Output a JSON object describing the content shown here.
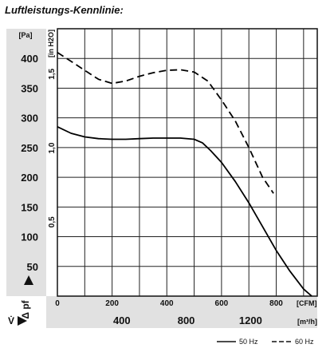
{
  "chart_data": {
    "type": "line",
    "title": "Luftleistungs-Kennlinie:",
    "y_axis": {
      "unit": "[Pa]",
      "ticks": [
        50,
        100,
        150,
        200,
        250,
        300,
        350,
        400
      ],
      "ticks_text": [
        "50",
        "100",
        "150",
        "200",
        "250",
        "300",
        "350",
        "400"
      ],
      "range": [
        0,
        450
      ],
      "symbol": "Δ pf"
    },
    "y_axis_secondary": {
      "unit": "[in H2O]",
      "ticks": [
        0.5,
        1.0,
        1.5
      ],
      "ticks_text": [
        "0,5",
        "1,0",
        "1,5"
      ]
    },
    "x_axis": {
      "unit": "[CFM]",
      "ticks": [
        0,
        200,
        400,
        600,
        800
      ],
      "ticks_text": [
        "0",
        "200",
        "400",
        "600",
        "800"
      ],
      "range": [
        0,
        950
      ]
    },
    "x_axis_secondary": {
      "unit": "[m³/h]",
      "ticks": [
        400,
        800,
        1200
      ],
      "ticks_text": [
        "400",
        "800",
        "1200"
      ],
      "symbol": "V̇"
    },
    "grid": true,
    "legend_position": "bottom-right",
    "series": [
      {
        "name": "50 Hz",
        "style": "solid",
        "color": "#000000",
        "x": [
          0,
          50,
          100,
          150,
          200,
          250,
          300,
          350,
          400,
          450,
          500,
          530,
          560,
          600,
          650,
          700,
          750,
          800,
          850,
          900,
          930
        ],
        "y": [
          285,
          274,
          268,
          265,
          264,
          264,
          265,
          266,
          266,
          266,
          264,
          258,
          245,
          225,
          193,
          157,
          117,
          77,
          42,
          12,
          0
        ]
      },
      {
        "name": "60 Hz",
        "style": "dashed",
        "color": "#000000",
        "x": [
          0,
          50,
          100,
          150,
          200,
          250,
          300,
          350,
          400,
          450,
          500,
          550,
          600,
          650,
          700,
          750,
          790
        ],
        "y": [
          410,
          395,
          380,
          365,
          358,
          362,
          370,
          376,
          380,
          381,
          377,
          362,
          330,
          295,
          250,
          200,
          173
        ]
      }
    ]
  }
}
